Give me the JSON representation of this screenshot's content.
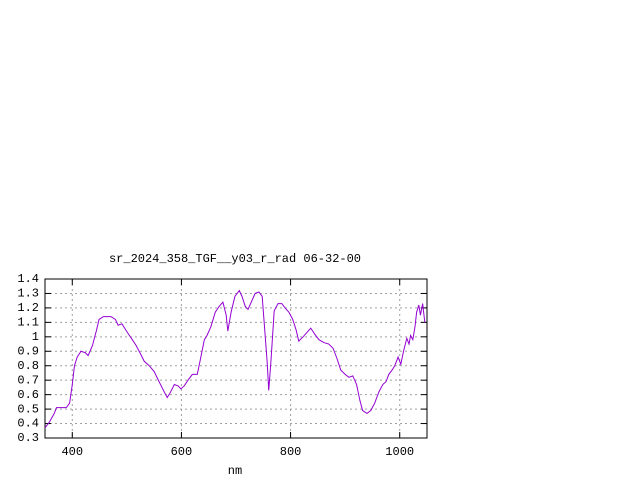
{
  "chart_data": {
    "type": "line",
    "title": "sr_2024_358_TGF__y03_r_rad 06-32-00",
    "xlabel": "nm",
    "x": [
      350,
      358,
      367,
      371,
      382,
      389,
      395,
      400,
      404,
      409,
      416,
      424,
      429,
      437,
      444,
      449,
      457,
      471,
      479,
      484,
      491,
      501,
      510,
      517,
      524,
      532,
      541,
      550,
      559,
      567,
      574,
      579,
      587,
      594,
      599,
      605,
      612,
      620,
      629,
      634,
      642,
      647,
      654,
      662,
      669,
      676,
      682,
      685,
      691,
      698,
      706,
      711,
      717,
      722,
      728,
      735,
      742,
      748,
      751,
      757,
      760,
      764,
      770,
      777,
      784,
      790,
      797,
      804,
      810,
      815,
      823,
      830,
      837,
      844,
      852,
      861,
      870,
      878,
      885,
      892,
      900,
      907,
      914,
      921,
      927,
      932,
      940,
      947,
      954,
      962,
      969,
      975,
      980,
      986,
      991,
      997,
      1002,
      1007,
      1013,
      1017,
      1020,
      1024,
      1028,
      1031,
      1035,
      1038,
      1042,
      1046
    ],
    "series": [
      {
        "color": "#9400d3",
        "values": [
          0.37,
          0.41,
          0.47,
          0.51,
          0.51,
          0.51,
          0.54,
          0.67,
          0.8,
          0.86,
          0.9,
          0.89,
          0.87,
          0.94,
          1.04,
          1.12,
          1.14,
          1.14,
          1.12,
          1.08,
          1.09,
          1.03,
          0.98,
          0.94,
          0.89,
          0.83,
          0.8,
          0.76,
          0.69,
          0.63,
          0.58,
          0.61,
          0.67,
          0.66,
          0.64,
          0.66,
          0.7,
          0.74,
          0.74,
          0.83,
          0.98,
          1.01,
          1.07,
          1.17,
          1.21,
          1.24,
          1.15,
          1.04,
          1.17,
          1.28,
          1.32,
          1.28,
          1.21,
          1.19,
          1.24,
          1.3,
          1.31,
          1.28,
          1.13,
          0.83,
          0.63,
          0.83,
          1.18,
          1.23,
          1.23,
          1.2,
          1.17,
          1.12,
          1.05,
          0.97,
          1,
          1.03,
          1.06,
          1.02,
          0.98,
          0.96,
          0.95,
          0.92,
          0.85,
          0.77,
          0.74,
          0.72,
          0.73,
          0.67,
          0.56,
          0.49,
          0.47,
          0.49,
          0.54,
          0.62,
          0.67,
          0.69,
          0.74,
          0.77,
          0.8,
          0.86,
          0.81,
          0.9,
          0.99,
          0.95,
          1.01,
          0.98,
          1.07,
          1.17,
          1.22,
          1.15,
          1.23,
          1.1
        ]
      }
    ],
    "xlim": [
      350,
      1050
    ],
    "ylim": [
      0.3,
      1.4
    ],
    "xticks": [
      400,
      600,
      800,
      1000
    ],
    "yticks": [
      0.3,
      0.4,
      0.5,
      0.6,
      0.7,
      0.8,
      0.9,
      1,
      1.1,
      1.2,
      1.3,
      1.4
    ],
    "grid": true
  }
}
